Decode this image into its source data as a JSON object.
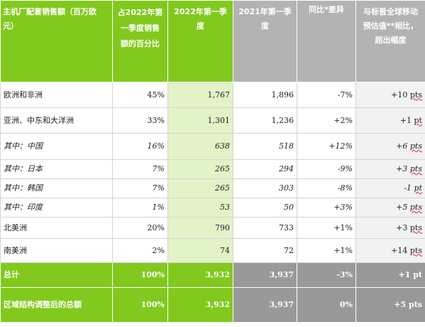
{
  "headers": {
    "region": "主机厂配套销售额（百万欧元）",
    "share": "占2022年第一季度销售额的百分比",
    "q1_2022": "2022年第一季度",
    "q1_2021": "2021年第一季度",
    "yoy": "同比*差异",
    "benchmark": "与标普全球移动预估值**相比，超出幅度"
  },
  "rows": [
    {
      "region": "欧洲和非洲",
      "share": "45%",
      "q1_2022": "1,767",
      "q1_2021": "1,896",
      "yoy": "-7%",
      "bench_value": "+10",
      "bench_unit": "pts",
      "italic": false
    },
    {
      "region": "亚洲、中东和大洋洲",
      "share": "33%",
      "q1_2022": "1,301",
      "q1_2021": "1,236",
      "yoy": "+2%",
      "bench_value": "+1",
      "bench_unit": "pt",
      "italic": false
    },
    {
      "region": "其中：中国",
      "share": "16%",
      "q1_2022": "638",
      "q1_2021": "518",
      "yoy": "+12%",
      "bench_value": "+6",
      "bench_unit": "pts",
      "italic": true
    },
    {
      "region": "其中：日本",
      "share": "7%",
      "q1_2022": "265",
      "q1_2021": "294",
      "yoy": "-9%",
      "bench_value": "+3",
      "bench_unit": "pts",
      "italic": true
    },
    {
      "region": "其中：韩国",
      "share": "7%",
      "q1_2022": "265",
      "q1_2021": "303",
      "yoy": "-8%",
      "bench_value": "-1",
      "bench_unit": "pt",
      "italic": true
    },
    {
      "region": "其中：印度",
      "share": "1%",
      "q1_2022": "53",
      "q1_2021": "50",
      "yoy": "+3%",
      "bench_value": "+5",
      "bench_unit": "pts",
      "italic": true
    },
    {
      "region": "北美洲",
      "share": "20%",
      "q1_2022": "790",
      "q1_2021": "733",
      "yoy": "+1%",
      "bench_value": "+3",
      "bench_unit": "pts",
      "italic": false
    },
    {
      "region": "南美洲",
      "share": "2%",
      "q1_2022": "74",
      "q1_2021": "72",
      "yoy": "+1%",
      "bench_value": "+14",
      "bench_unit": "pts",
      "italic": false
    }
  ],
  "totals": [
    {
      "region": "总计",
      "share": "100%",
      "q1_2022": "3,932",
      "q1_2021": "3,937",
      "yoy": "-3%",
      "bench_value": "+1",
      "bench_unit": "pt"
    },
    {
      "region": "区域结构调整后的总额",
      "share": "100%",
      "q1_2022": "3,932",
      "q1_2021": "3,937",
      "yoy": "0%",
      "bench_value": "+5",
      "bench_unit": "pts"
    }
  ]
}
